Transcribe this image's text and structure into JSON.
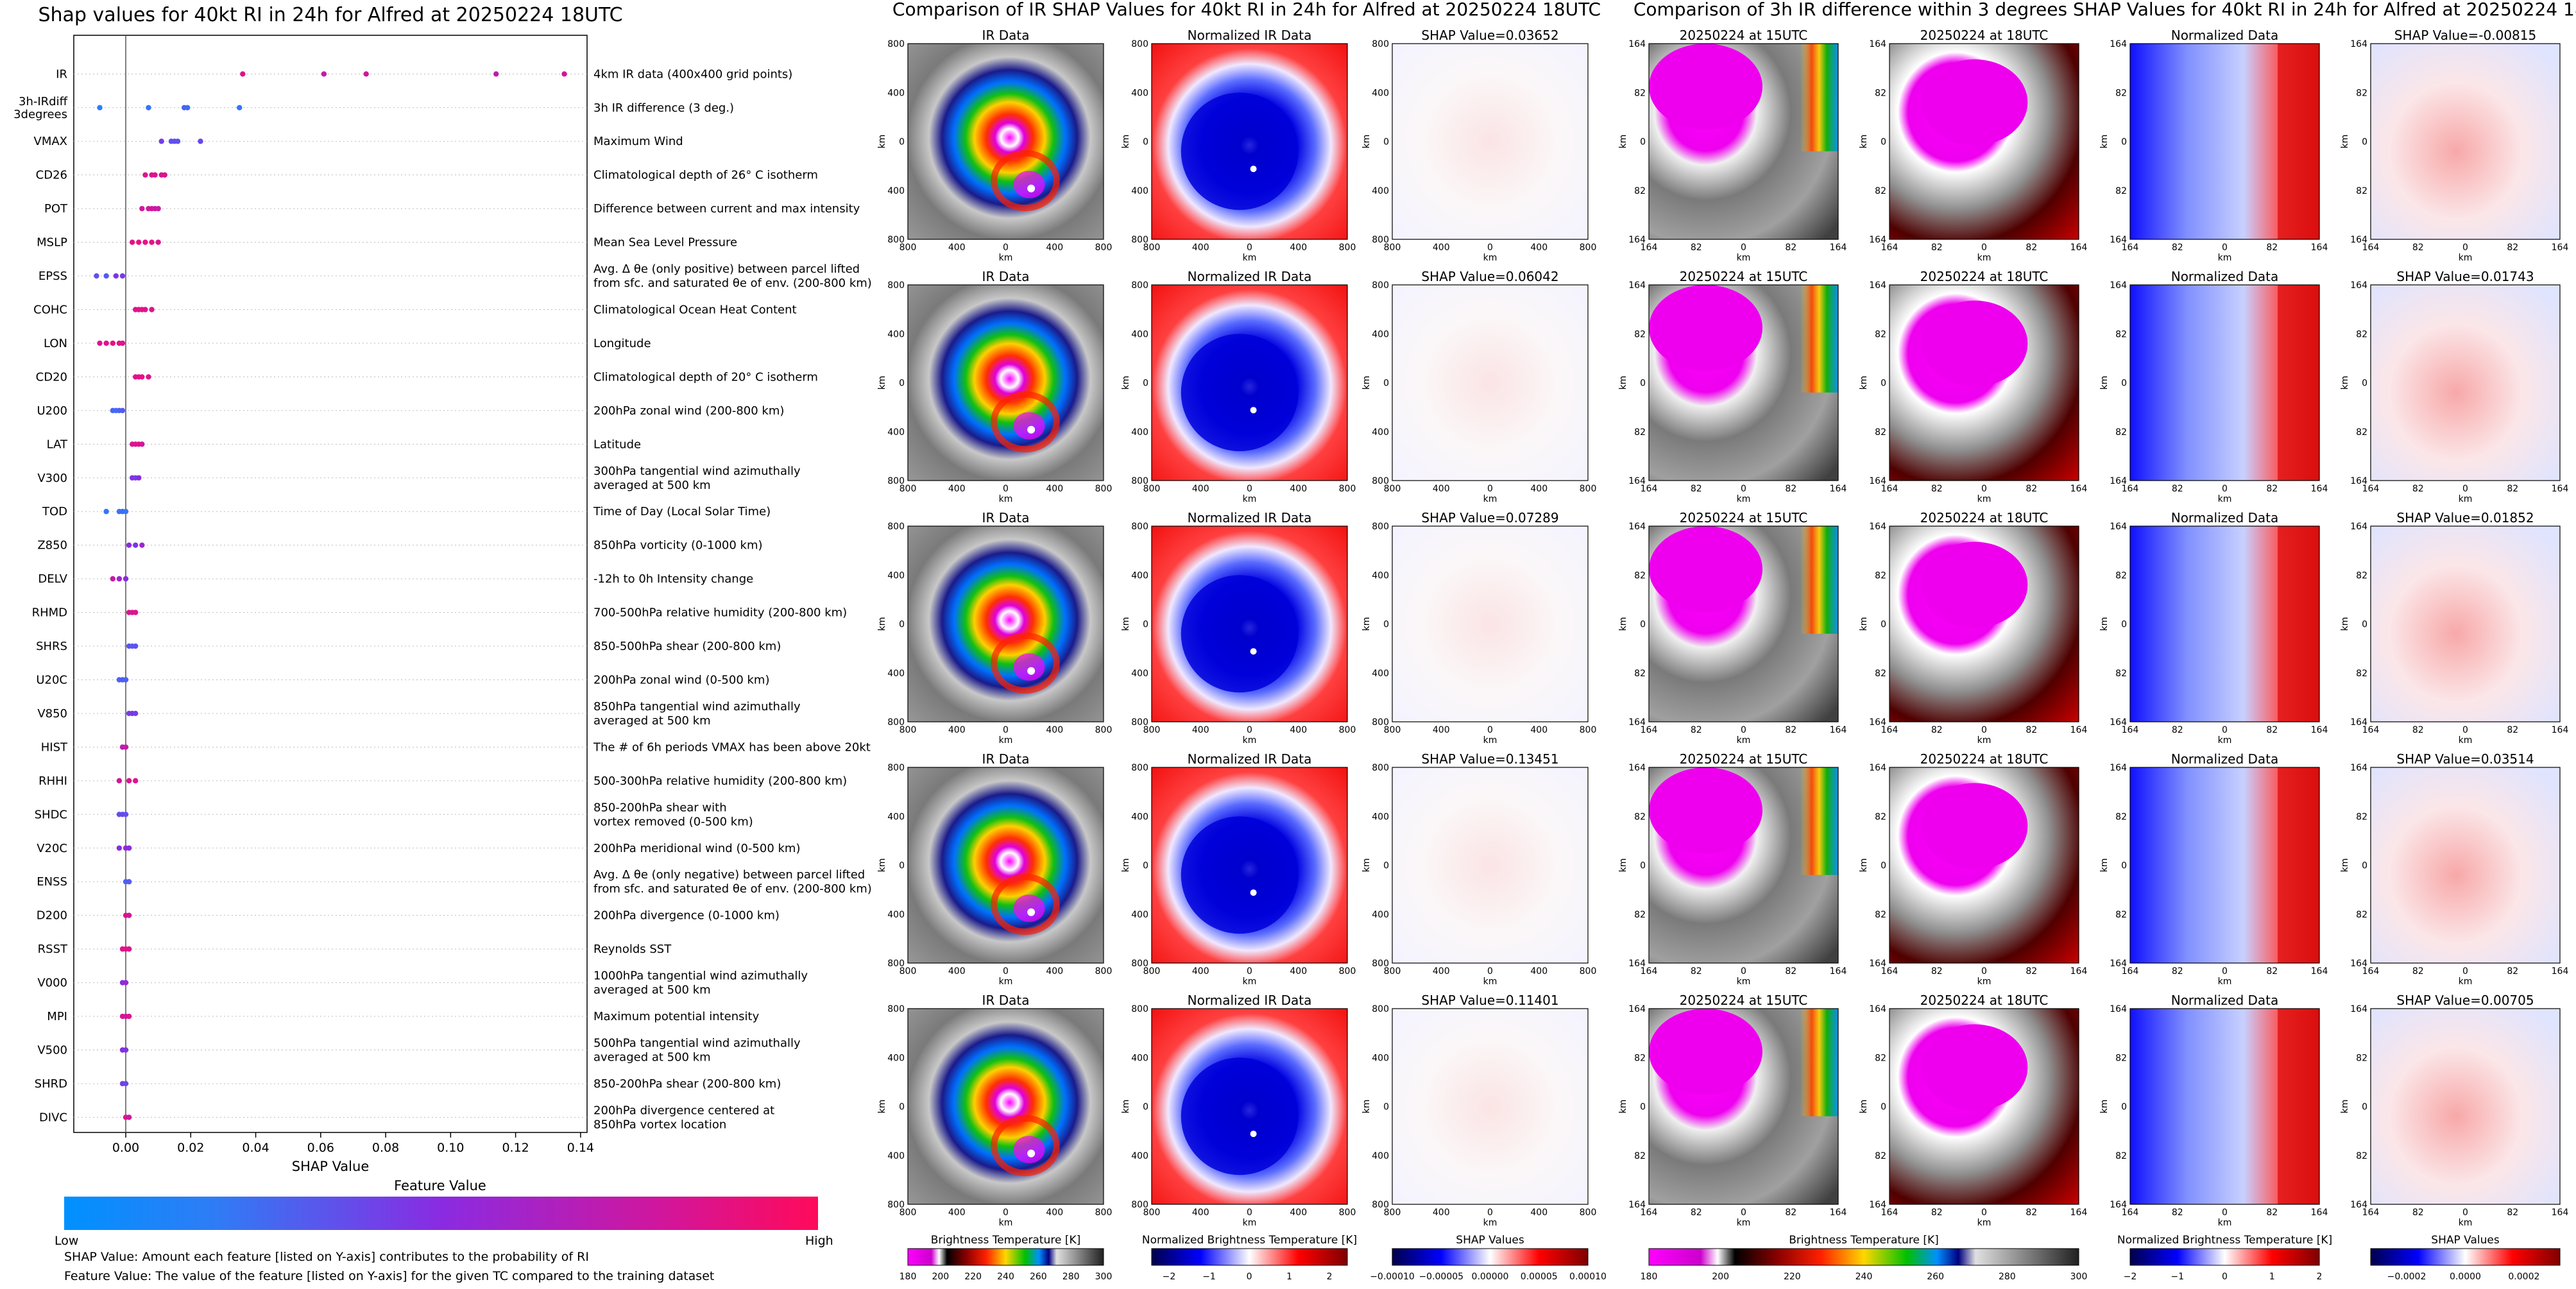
{
  "colors": {
    "feature_low": "#1e88ff",
    "feature_mid": "#8a2be2",
    "feature_high": "#ff0a6c",
    "shap_neg": "#0000ff",
    "shap_pos": "#ff0000"
  },
  "summary": {
    "title": "Shap values for 40kt RI in 24h for Alfred at 20250224 18UTC",
    "xlabel": "SHAP Value",
    "feature_value_label": "Feature Value",
    "low_label": "Low",
    "high_label": "High",
    "note1": "SHAP Value: Amount each feature [listed on Y-axis] contributes to the probability of RI",
    "note2": "Feature Value: The value of the feature [listed on Y-axis] for the given TC compared to the training dataset"
  },
  "chart_data": [
    {
      "type": "scatter",
      "title": "Shap values for 40kt RI in 24h for Alfred at 20250224 18UTC",
      "xlabel": "SHAP Value",
      "xlim": [
        -0.016,
        0.142
      ],
      "xticks": [
        "0.00",
        "0.02",
        "0.04",
        "0.06",
        "0.08",
        "0.10",
        "0.12",
        "0.14"
      ],
      "features": [
        {
          "name": "IR",
          "desc": [
            "4km IR data (400x400 grid points)"
          ],
          "points": [
            [
              0.036,
              0.85
            ],
            [
              0.061,
              0.75
            ],
            [
              0.074,
              0.8
            ],
            [
              0.114,
              0.72
            ],
            [
              0.135,
              0.8
            ]
          ]
        },
        {
          "name": "3h-IRdiff\n3degrees",
          "desc": [
            "3h IR difference (3 deg.)"
          ],
          "points": [
            [
              -0.008,
              0.05
            ],
            [
              0.007,
              0.1
            ],
            [
              0.018,
              0.2
            ],
            [
              0.019,
              0.15
            ],
            [
              0.035,
              0.1
            ]
          ]
        },
        {
          "name": "VMAX",
          "desc": [
            "Maximum Wind"
          ],
          "points": [
            [
              0.014,
              0.3
            ],
            [
              0.016,
              0.3
            ],
            [
              0.023,
              0.35
            ],
            [
              0.015,
              0.3
            ],
            [
              0.011,
              0.4
            ]
          ]
        },
        {
          "name": "CD26",
          "desc": [
            "Climatological depth of 26° C isotherm"
          ],
          "points": [
            [
              0.006,
              0.85
            ],
            [
              0.008,
              0.85
            ],
            [
              0.009,
              0.85
            ],
            [
              0.012,
              0.85
            ],
            [
              0.011,
              0.85
            ]
          ]
        },
        {
          "name": "POT",
          "desc": [
            "Difference between current and max intensity"
          ],
          "points": [
            [
              0.005,
              0.8
            ],
            [
              0.007,
              0.8
            ],
            [
              0.009,
              0.8
            ],
            [
              0.01,
              0.75
            ],
            [
              0.008,
              0.8
            ]
          ]
        },
        {
          "name": "MSLP",
          "desc": [
            "Mean Sea Level Pressure"
          ],
          "points": [
            [
              0.002,
              0.9
            ],
            [
              0.004,
              0.9
            ],
            [
              0.006,
              0.9
            ],
            [
              0.008,
              0.9
            ],
            [
              0.01,
              0.85
            ]
          ]
        },
        {
          "name": "EPSS",
          "desc": [
            "Avg. Δ θe (only positive) between parcel lifted",
            "from sfc. and saturated θe of env. (200-800 km)"
          ],
          "points": [
            [
              -0.009,
              0.3
            ],
            [
              -0.006,
              0.25
            ],
            [
              -0.003,
              0.45
            ],
            [
              -0.001,
              0.4
            ]
          ]
        },
        {
          "name": "COHC",
          "desc": [
            "Climatological Ocean Heat Content"
          ],
          "points": [
            [
              0.003,
              0.85
            ],
            [
              0.005,
              0.9
            ],
            [
              0.006,
              0.85
            ],
            [
              0.008,
              0.85
            ],
            [
              0.004,
              0.9
            ]
          ]
        },
        {
          "name": "LON",
          "desc": [
            "Longitude"
          ],
          "points": [
            [
              -0.008,
              0.85
            ],
            [
              -0.006,
              0.85
            ],
            [
              -0.004,
              0.9
            ],
            [
              -0.002,
              0.9
            ],
            [
              -0.001,
              0.85
            ]
          ]
        },
        {
          "name": "CD20",
          "desc": [
            "Climatological depth of 20° C isotherm"
          ],
          "points": [
            [
              0.003,
              0.85
            ],
            [
              0.004,
              0.9
            ],
            [
              0.005,
              0.9
            ],
            [
              0.007,
              0.85
            ]
          ]
        },
        {
          "name": "U200",
          "desc": [
            "200hPa zonal wind (200-800 km)"
          ],
          "points": [
            [
              -0.004,
              0.2
            ],
            [
              -0.003,
              0.15
            ],
            [
              -0.002,
              0.2
            ],
            [
              -0.001,
              0.25
            ]
          ]
        },
        {
          "name": "LAT",
          "desc": [
            "Latitude"
          ],
          "points": [
            [
              0.002,
              0.85
            ],
            [
              0.003,
              0.85
            ],
            [
              0.004,
              0.85
            ],
            [
              0.005,
              0.8
            ]
          ]
        },
        {
          "name": "V300",
          "desc": [
            "300hPa tangential wind azimuthally",
            "averaged at 500 km"
          ],
          "points": [
            [
              0.002,
              0.45
            ],
            [
              0.003,
              0.4
            ],
            [
              0.004,
              0.5
            ]
          ]
        },
        {
          "name": "TOD",
          "desc": [
            "Time of Day (Local Solar Time)"
          ],
          "points": [
            [
              -0.006,
              0.1
            ],
            [
              -0.002,
              0.1
            ],
            [
              -0.001,
              0.15
            ],
            [
              0.0,
              0.1
            ]
          ]
        },
        {
          "name": "Z850",
          "desc": [
            "850hPa vorticity (0-1000 km)"
          ],
          "points": [
            [
              0.001,
              0.5
            ],
            [
              0.003,
              0.45
            ],
            [
              0.005,
              0.6
            ]
          ]
        },
        {
          "name": "DELV",
          "desc": [
            "-12h to 0h Intensity change"
          ],
          "points": [
            [
              -0.004,
              0.75
            ],
            [
              -0.002,
              0.6
            ],
            [
              0.0,
              0.5
            ]
          ]
        },
        {
          "name": "RHMD",
          "desc": [
            "700-500hPa relative humidity (200-800 km)"
          ],
          "points": [
            [
              0.001,
              0.85
            ],
            [
              0.002,
              0.85
            ],
            [
              0.003,
              0.85
            ]
          ]
        },
        {
          "name": "SHRS",
          "desc": [
            "850-500hPa shear (200-800 km)"
          ],
          "points": [
            [
              0.001,
              0.3
            ],
            [
              0.002,
              0.25
            ],
            [
              0.003,
              0.3
            ]
          ]
        },
        {
          "name": "U20C",
          "desc": [
            "200hPa zonal wind (0-500 km)"
          ],
          "points": [
            [
              -0.002,
              0.2
            ],
            [
              -0.001,
              0.25
            ],
            [
              0.0,
              0.2
            ]
          ]
        },
        {
          "name": "V850",
          "desc": [
            "850hPa tangential wind azimuthally",
            "averaged at 500 km"
          ],
          "points": [
            [
              0.001,
              0.4
            ],
            [
              0.002,
              0.45
            ],
            [
              0.003,
              0.4
            ]
          ]
        },
        {
          "name": "HIST",
          "desc": [
            "The # of 6h periods VMAX has been above 20kt"
          ],
          "points": [
            [
              -0.001,
              0.7
            ],
            [
              0.0,
              0.75
            ]
          ]
        },
        {
          "name": "RHHI",
          "desc": [
            "500-300hPa relative humidity (200-800 km)"
          ],
          "points": [
            [
              -0.002,
              0.8
            ],
            [
              0.001,
              0.85
            ],
            [
              0.003,
              0.85
            ]
          ]
        },
        {
          "name": "SHDC",
          "desc": [
            "850-200hPa shear with",
            "vortex removed (0-500 km)"
          ],
          "points": [
            [
              -0.002,
              0.3
            ],
            [
              -0.001,
              0.35
            ],
            [
              0.0,
              0.3
            ]
          ]
        },
        {
          "name": "V20C",
          "desc": [
            "200hPa meridional wind (0-500 km)"
          ],
          "points": [
            [
              -0.002,
              0.5
            ],
            [
              0.0,
              0.55
            ],
            [
              0.001,
              0.5
            ]
          ]
        },
        {
          "name": "ENSS",
          "desc": [
            "Avg. Δ θe (only negative) between parcel lifted",
            "from sfc. and saturated θe of env. (200-800 km)"
          ],
          "points": [
            [
              0.0,
              0.2
            ],
            [
              0.001,
              0.25
            ]
          ]
        },
        {
          "name": "D200",
          "desc": [
            "200hPa divergence (0-1000 km)"
          ],
          "points": [
            [
              0.0,
              0.85
            ],
            [
              0.001,
              0.8
            ]
          ]
        },
        {
          "name": "RSST",
          "desc": [
            "Reynolds SST"
          ],
          "points": [
            [
              -0.001,
              0.85
            ],
            [
              0.0,
              0.9
            ],
            [
              0.001,
              0.85
            ]
          ]
        },
        {
          "name": "V000",
          "desc": [
            "1000hPa tangential wind azimuthally",
            "averaged at 500 km"
          ],
          "points": [
            [
              -0.001,
              0.5
            ],
            [
              0.0,
              0.55
            ]
          ]
        },
        {
          "name": "MPI",
          "desc": [
            "Maximum potential intensity"
          ],
          "points": [
            [
              -0.001,
              0.85
            ],
            [
              0.0,
              0.8
            ],
            [
              0.001,
              0.85
            ]
          ]
        },
        {
          "name": "V500",
          "desc": [
            "500hPa tangential wind azimuthally",
            "averaged at 500 km"
          ],
          "points": [
            [
              -0.001,
              0.5
            ],
            [
              0.0,
              0.45
            ]
          ]
        },
        {
          "name": "SHRD",
          "desc": [
            "850-200hPa shear (200-800 km)"
          ],
          "points": [
            [
              -0.001,
              0.4
            ],
            [
              0.0,
              0.35
            ]
          ]
        },
        {
          "name": "DIVC",
          "desc": [
            "200hPa divergence centered at",
            "850hPa vortex location"
          ],
          "points": [
            [
              0.0,
              0.85
            ],
            [
              0.001,
              0.8
            ]
          ]
        }
      ]
    },
    {
      "type": "heatmap",
      "title": "Comparison of IR SHAP Values for 40kt RI in 24h for Alfred at 20250224 18UTC",
      "column_titles": [
        "IR Data",
        "Normalized IR Data"
      ],
      "shap_titles": [
        "SHAP Value=0.03652",
        "SHAP Value=0.06042",
        "SHAP Value=0.07289",
        "SHAP Value=0.13451",
        "SHAP Value=0.11401"
      ],
      "ticks": [
        "800",
        "400",
        "0",
        "400",
        "800"
      ],
      "xlabel": "km",
      "ylabel": "km",
      "colorbars": [
        {
          "label": "Brightness Temperature [K]",
          "ticks": [
            "180",
            "200",
            "220",
            "240",
            "260",
            "280",
            "300"
          ]
        },
        {
          "label": "Normalized Brightness Temperature [K]",
          "ticks": [
            "−2",
            "−1",
            "0",
            "1",
            "2"
          ]
        },
        {
          "label": "SHAP Values",
          "ticks": [
            "−0.00010",
            "−0.00005",
            "0.00000",
            "0.00005",
            "0.00010"
          ]
        }
      ]
    },
    {
      "type": "heatmap",
      "title": "Comparison of 3h IR difference within 3 degrees SHAP Values for 40kt RI in 24h for Alfred at 20250224 18UTC",
      "column_titles": [
        "20250224 at 15UTC",
        "20250224 at 18UTC",
        "Normalized Data"
      ],
      "shap_titles": [
        "SHAP Value=-0.00815",
        "SHAP Value=0.01743",
        "SHAP Value=0.01852",
        "SHAP Value=0.03514",
        "SHAP Value=0.00705"
      ],
      "ticks": [
        "164",
        "82",
        "0",
        "82",
        "164"
      ],
      "xlabel": "km",
      "ylabel": "km",
      "colorbars": [
        {
          "label": "Brightness Temperature [K]",
          "ticks": [
            "180",
            "200",
            "220",
            "240",
            "260",
            "280",
            "300"
          ]
        },
        {
          "label": "Normalized Brightness Temperature [K]",
          "ticks": [
            "−2",
            "−1",
            "0",
            "1",
            "2"
          ]
        },
        {
          "label": "SHAP Values",
          "ticks": [
            "−0.0002",
            "0.0000",
            "0.0002"
          ]
        }
      ]
    }
  ]
}
